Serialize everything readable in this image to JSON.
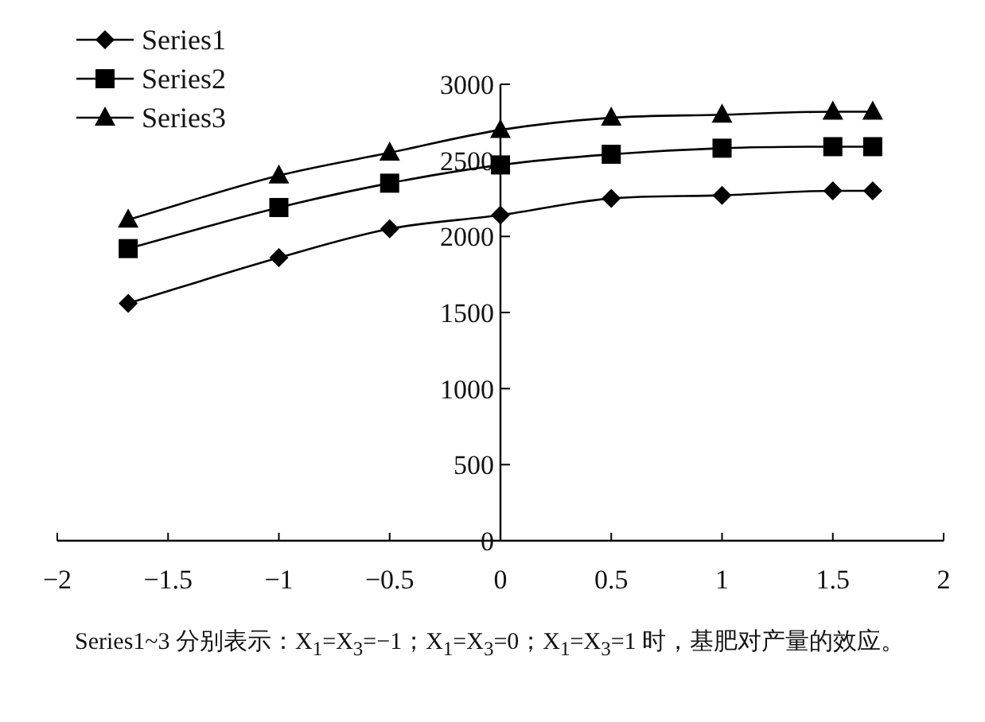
{
  "chart_data": {
    "type": "line",
    "x": [
      -1.68,
      -1,
      -0.5,
      0,
      0.5,
      1,
      1.5,
      1.68
    ],
    "series": [
      {
        "name": "Series1",
        "color": "#000000",
        "marker": "diamond",
        "values": [
          1560,
          1860,
          2050,
          2140,
          2250,
          2270,
          2300,
          2300
        ]
      },
      {
        "name": "Series2",
        "color": "#000000",
        "marker": "square",
        "values": [
          1920,
          2190,
          2350,
          2470,
          2540,
          2580,
          2590,
          2590
        ]
      },
      {
        "name": "Series3",
        "color": "#000000",
        "marker": "triangle",
        "values": [
          2110,
          2400,
          2550,
          2700,
          2780,
          2800,
          2820,
          2820
        ]
      }
    ],
    "xlim": [
      -2,
      2
    ],
    "ylim": [
      0,
      3000
    ],
    "xticks": [
      -2,
      -1.5,
      -1,
      -0.5,
      0,
      0.5,
      1,
      1.5,
      2
    ],
    "yticks": [
      0,
      500,
      1000,
      1500,
      2000,
      2500,
      3000
    ],
    "legend": "top left",
    "annotations": [
      "Series1~3 分别表示：X$_{1}$=X$_{3}$=−1；X$_{1}$=X$_{3}$=0；X$_{1}$=X$_{3}$=1 时，基肥对产量的效应。"
    ]
  }
}
